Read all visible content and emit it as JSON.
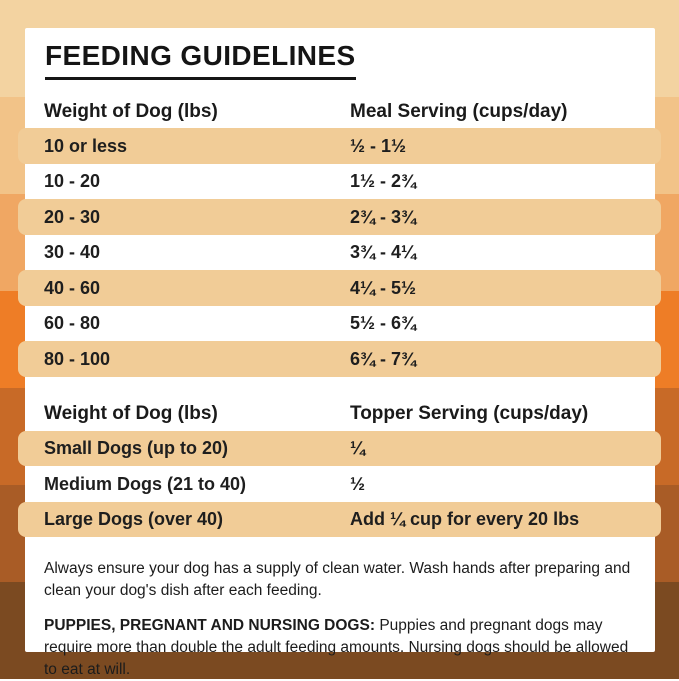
{
  "title": "FEEDING GUIDELINES",
  "colors": {
    "background_bands": [
      "#f3d3a1",
      "#f2c388",
      "#f0a763",
      "#ee7d26",
      "#c86a27",
      "#a95c26",
      "#7b4a21"
    ],
    "card_background": "#ffffff",
    "row_highlight": "#f1cc97",
    "text": "#1a1a1a"
  },
  "meal_table": {
    "col1_header": "Weight of Dog (lbs)",
    "col2_header": "Meal Serving (cups/day)",
    "rows": [
      {
        "weight": "10 or less",
        "serving": "½ - 1½"
      },
      {
        "weight": "10 - 20",
        "serving": "1½ - 2¾"
      },
      {
        "weight": "20 - 30",
        "serving": "2¾ - 3¾"
      },
      {
        "weight": "30 - 40",
        "serving": "3¾ - 4¼"
      },
      {
        "weight": "40 - 60",
        "serving": "4¼ - 5½"
      },
      {
        "weight": "60 - 80",
        "serving": "5½ - 6¾"
      },
      {
        "weight": "80 - 100",
        "serving": "6¾ - 7¾"
      }
    ]
  },
  "topper_table": {
    "col1_header": "Weight of Dog (lbs)",
    "col2_header": "Topper Serving (cups/day)",
    "rows": [
      {
        "weight": "Small Dogs (up to 20)",
        "serving": "¼"
      },
      {
        "weight": "Medium Dogs (21 to 40)",
        "serving": "½"
      },
      {
        "weight": "Large Dogs (over 40)",
        "serving": "Add ¼ cup for every 20 lbs"
      }
    ]
  },
  "notes": {
    "water_note": "Always ensure your dog has a supply of clean water. Wash hands after preparing and clean your dog's dish after each feeding.",
    "special_label": "PUPPIES, PREGNANT AND NURSING DOGS:",
    "special_text": "Puppies and pregnant dogs may require more than double the adult feeding amounts. Nursing dogs should be allowed to eat at will."
  }
}
